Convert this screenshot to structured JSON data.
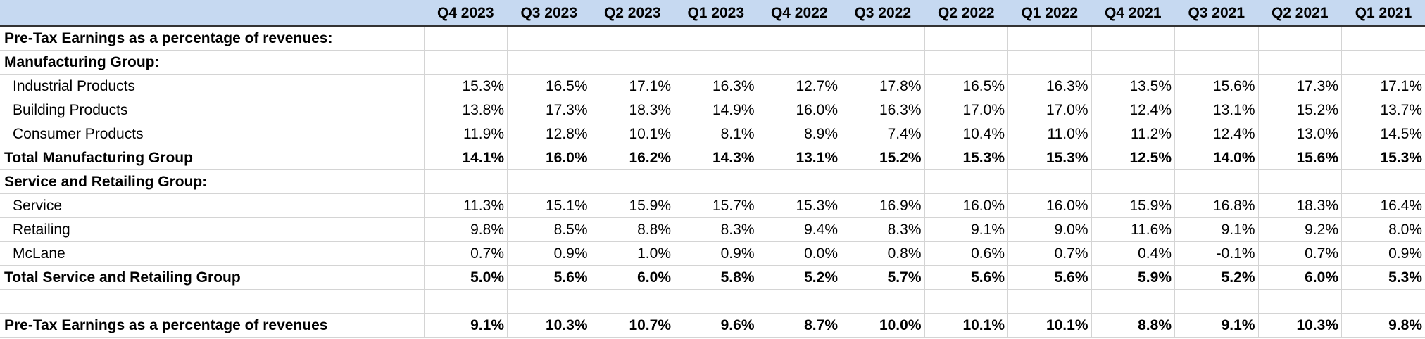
{
  "header": {
    "label": "",
    "quarters": [
      "Q4 2023",
      "Q3 2023",
      "Q2 2023",
      "Q1 2023",
      "Q4 2022",
      "Q3 2022",
      "Q2 2022",
      "Q1 2022",
      "Q4 2021",
      "Q3 2021",
      "Q2 2021",
      "Q1 2021"
    ]
  },
  "rows": [
    {
      "label": "Pre-Tax Earnings as a percentage of revenues:",
      "values": [
        "",
        "",
        "",
        "",
        "",
        "",
        "",
        "",
        "",
        "",
        "",
        ""
      ]
    },
    {
      "label": "Manufacturing Group:",
      "values": [
        "",
        "",
        "",
        "",
        "",
        "",
        "",
        "",
        "",
        "",
        "",
        ""
      ]
    },
    {
      "label": "Industrial Products",
      "values": [
        "15.3%",
        "16.5%",
        "17.1%",
        "16.3%",
        "12.7%",
        "17.8%",
        "16.5%",
        "16.3%",
        "13.5%",
        "15.6%",
        "17.3%",
        "17.1%"
      ]
    },
    {
      "label": "Building Products",
      "values": [
        "13.8%",
        "17.3%",
        "18.3%",
        "14.9%",
        "16.0%",
        "16.3%",
        "17.0%",
        "17.0%",
        "12.4%",
        "13.1%",
        "15.2%",
        "13.7%"
      ]
    },
    {
      "label": "Consumer Products",
      "values": [
        "11.9%",
        "12.8%",
        "10.1%",
        "8.1%",
        "8.9%",
        "7.4%",
        "10.4%",
        "11.0%",
        "11.2%",
        "12.4%",
        "13.0%",
        "14.5%"
      ]
    },
    {
      "label": "Total Manufacturing Group",
      "values": [
        "14.1%",
        "16.0%",
        "16.2%",
        "14.3%",
        "13.1%",
        "15.2%",
        "15.3%",
        "15.3%",
        "12.5%",
        "14.0%",
        "15.6%",
        "15.3%"
      ]
    },
    {
      "label": "Service and Retailing Group:",
      "values": [
        "",
        "",
        "",
        "",
        "",
        "",
        "",
        "",
        "",
        "",
        "",
        ""
      ]
    },
    {
      "label": "Service",
      "values": [
        "11.3%",
        "15.1%",
        "15.9%",
        "15.7%",
        "15.3%",
        "16.9%",
        "16.0%",
        "16.0%",
        "15.9%",
        "16.8%",
        "18.3%",
        "16.4%"
      ]
    },
    {
      "label": "Retailing",
      "values": [
        "9.8%",
        "8.5%",
        "8.8%",
        "8.3%",
        "9.4%",
        "8.3%",
        "9.1%",
        "9.0%",
        "11.6%",
        "9.1%",
        "9.2%",
        "8.0%"
      ]
    },
    {
      "label": "McLane",
      "values": [
        "0.7%",
        "0.9%",
        "1.0%",
        "0.9%",
        "0.0%",
        "0.8%",
        "0.6%",
        "0.7%",
        "0.4%",
        "-0.1%",
        "0.7%",
        "0.9%"
      ]
    },
    {
      "label": "Total Service and Retailing Group",
      "values": [
        "5.0%",
        "5.6%",
        "6.0%",
        "5.8%",
        "5.2%",
        "5.7%",
        "5.6%",
        "5.6%",
        "5.9%",
        "5.2%",
        "6.0%",
        "5.3%"
      ]
    },
    {
      "label": "",
      "values": [
        "",
        "",
        "",
        "",
        "",
        "",
        "",
        "",
        "",
        "",
        "",
        ""
      ]
    },
    {
      "label": "Pre-Tax Earnings as a percentage of revenues",
      "values": [
        "9.1%",
        "10.3%",
        "10.7%",
        "9.6%",
        "8.7%",
        "10.0%",
        "10.1%",
        "10.1%",
        "8.8%",
        "9.1%",
        "10.3%",
        "9.8%"
      ]
    }
  ]
}
